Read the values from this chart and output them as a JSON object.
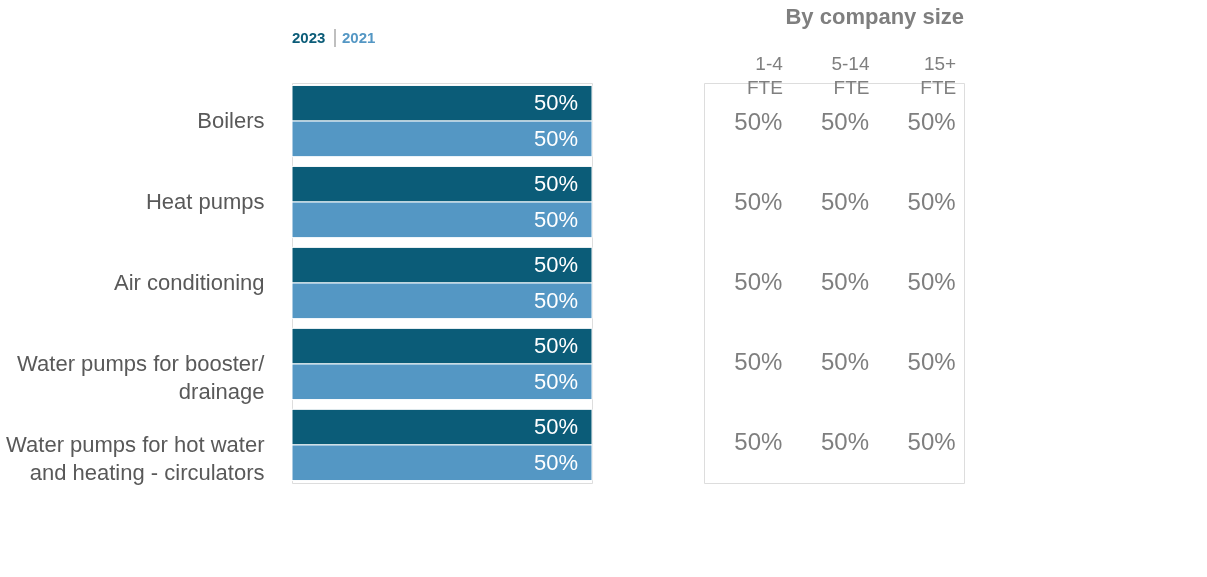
{
  "chart_data": [
    {
      "type": "bar",
      "orientation": "horizontal",
      "legend": "top left",
      "categories": [
        "Boilers",
        "Heat pumps",
        "Air conditioning",
        "Water pumps for booster/\ndrainage",
        "Water pumps for hot water\nand heating - circulators"
      ],
      "series": [
        {
          "name": "2023",
          "color": "#0b5c78",
          "values": [
            50,
            50,
            50,
            50,
            50
          ],
          "value_labels": [
            "50%",
            "50%",
            "50%",
            "50%",
            "50%"
          ]
        },
        {
          "name": "2021",
          "color": "#5497c4",
          "values": [
            50,
            50,
            50,
            50,
            50
          ],
          "value_labels": [
            "50%",
            "50%",
            "50%",
            "50%",
            "50%"
          ]
        }
      ]
    },
    {
      "type": "other",
      "title": "By company size",
      "categories": [
        "1-4\nFTE",
        "5-14\nFTE",
        "15+\nFTE"
      ],
      "annotations": [
        "50%",
        "50%",
        "50%",
        "50%",
        "50%",
        "50%",
        "50%",
        "50%",
        "50%",
        "50%",
        "50%",
        "50%",
        "50%",
        "50%",
        "50%"
      ]
    }
  ]
}
